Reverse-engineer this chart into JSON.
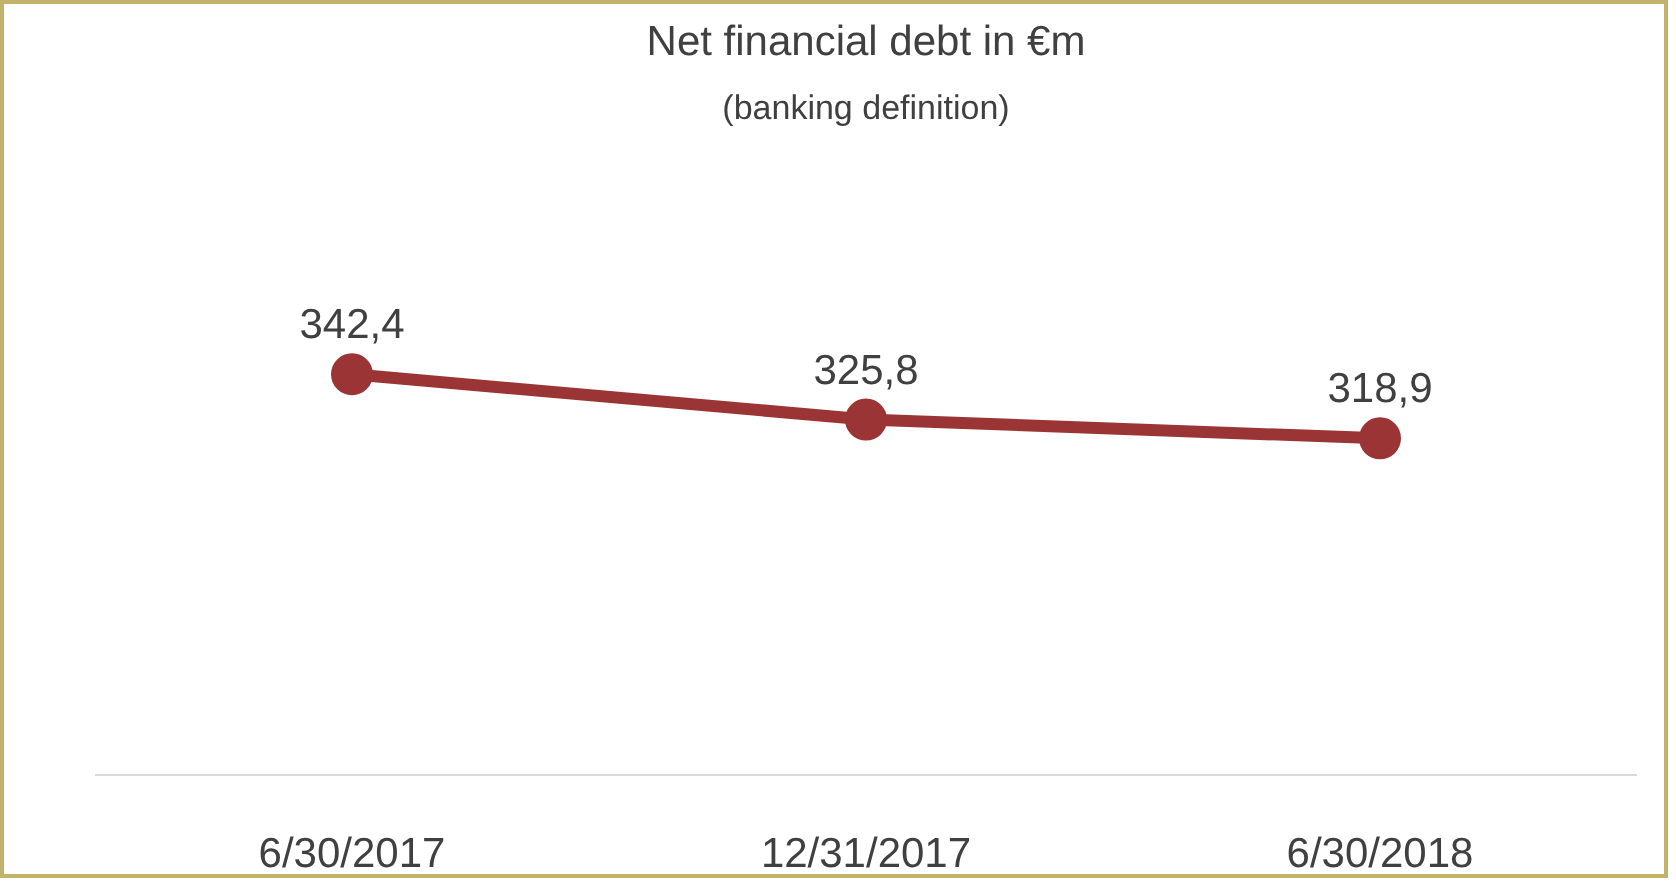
{
  "chart_data": {
    "type": "line",
    "title": "Net financial debt in €m",
    "subtitle": "(banking definition)",
    "categories": [
      "6/30/2017",
      "12/31/2017",
      "6/30/2018"
    ],
    "series": [
      {
        "color": "#9b3535",
        "values": [
          342.4,
          325.8,
          318.9
        ],
        "value_labels": [
          "342,4",
          "325,8",
          "318,9"
        ]
      }
    ],
    "marker": "circle",
    "line_style": "solid"
  }
}
